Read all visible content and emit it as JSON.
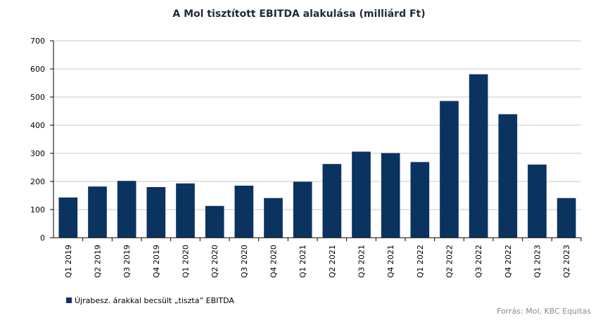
{
  "chart_data": {
    "type": "bar",
    "title": "A Mol tisztított EBITDA alakulása (milliárd Ft)",
    "xlabel": "",
    "ylabel": "",
    "ylim": [
      0,
      700
    ],
    "yticks": [
      0,
      100,
      200,
      300,
      400,
      500,
      600,
      700
    ],
    "grid": true,
    "legend_position": "bottom-left",
    "categories": [
      "Q1 2019",
      "Q2 2019",
      "Q3 2019",
      "Q4 2019",
      "Q1 2020",
      "Q2 2020",
      "Q3 2020",
      "Q4 2020",
      "Q1 2021",
      "Q2 2021",
      "Q3 2021",
      "Q4 2021",
      "Q1 2022",
      "Q2 2022",
      "Q3 2022",
      "Q4 2022",
      "Q1 2023",
      "Q2 2023"
    ],
    "series": [
      {
        "name": "Újrabesz. árakkal becsült „tiszta” EBITDA",
        "color": "#0b3360",
        "values": [
          143,
          182,
          202,
          180,
          193,
          113,
          185,
          141,
          199,
          262,
          306,
          301,
          269,
          486,
          581,
          439,
          260,
          141
        ]
      }
    ],
    "source": "Forrás: Mol, KBC Equitas"
  },
  "colors": {
    "bar": "#0b3360",
    "grid": "#c8c8c8",
    "axis": "#000000",
    "title": "#1f2a3a",
    "source": "#8a8a8a"
  }
}
